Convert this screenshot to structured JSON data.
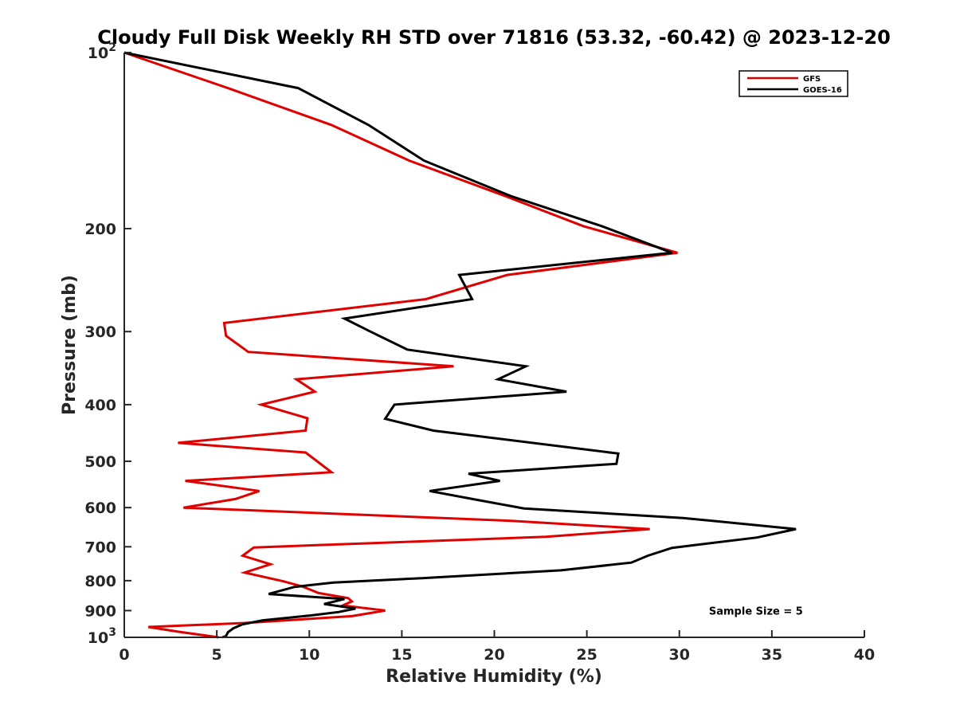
{
  "chart_data": {
    "type": "line",
    "title": "Cloudy Full Disk Weekly RH STD over 71816 (53.32, -60.42) @ 2023-12-20",
    "xlabel": "Relative Humidity (%)",
    "ylabel": "Pressure (mb)",
    "xlim": [
      0,
      40
    ],
    "ylim": [
      100,
      1000
    ],
    "yscale": "log",
    "y_reversed": true,
    "grid": false,
    "legend_position": "top-right",
    "x_ticks": [
      "0",
      "5",
      "10",
      "15",
      "20",
      "25",
      "30",
      "35",
      "40"
    ],
    "x_tick_values": [
      0,
      5,
      10,
      15,
      20,
      25,
      30,
      35,
      40
    ],
    "y_ticks": [
      {
        "value": 100,
        "base": "10",
        "exp": "2"
      },
      {
        "value": 200,
        "label": "200"
      },
      {
        "value": 300,
        "label": "300"
      },
      {
        "value": 400,
        "label": "400"
      },
      {
        "value": 500,
        "label": "500"
      },
      {
        "value": 600,
        "label": "600"
      },
      {
        "value": 700,
        "label": "700"
      },
      {
        "value": 800,
        "label": "800"
      },
      {
        "value": 900,
        "label": "900"
      },
      {
        "value": 1000,
        "base": "10",
        "exp": "3"
      }
    ],
    "series": [
      {
        "name": "GFS",
        "color": "#e00000",
        "points": [
          [
            0,
            100
          ],
          [
            5.6,
            115
          ],
          [
            11.2,
            133
          ],
          [
            15.4,
            153
          ],
          [
            20.6,
            176
          ],
          [
            24.8,
            198
          ],
          [
            29.9,
            220
          ],
          [
            20.7,
            240
          ],
          [
            16.3,
            264
          ],
          [
            5.4,
            290
          ],
          [
            5.5,
            305
          ],
          [
            6.7,
            325
          ],
          [
            17.8,
            344
          ],
          [
            9.3,
            362
          ],
          [
            10.3,
            380
          ],
          [
            7.4,
            400
          ],
          [
            9.9,
            422
          ],
          [
            9.8,
            443
          ],
          [
            2.9,
            465
          ],
          [
            9.8,
            483
          ],
          [
            11.2,
            522
          ],
          [
            3.3,
            540
          ],
          [
            7.3,
            562
          ],
          [
            6.0,
            580
          ],
          [
            3.2,
            600
          ],
          [
            20.9,
            632
          ],
          [
            28.4,
            653
          ],
          [
            22.8,
            673
          ],
          [
            7.0,
            702
          ],
          [
            6.4,
            725
          ],
          [
            7.9,
            750
          ],
          [
            6.5,
            775
          ],
          [
            8.6,
            802
          ],
          [
            9.6,
            818
          ],
          [
            10.5,
            840
          ],
          [
            12.1,
            857
          ],
          [
            12.3,
            868
          ],
          [
            11.8,
            882
          ],
          [
            14.1,
            900
          ],
          [
            12.3,
            920
          ],
          [
            6.5,
            945
          ],
          [
            1.3,
            960
          ],
          [
            2.9,
            978
          ],
          [
            5.1,
            1000
          ]
        ]
      },
      {
        "name": "GOES-16",
        "color": "#000000",
        "points": [
          [
            0,
            100
          ],
          [
            9.4,
            115
          ],
          [
            13.2,
            133
          ],
          [
            16.2,
            153
          ],
          [
            20.9,
            176
          ],
          [
            25.8,
            198
          ],
          [
            29.6,
            220
          ],
          [
            18.1,
            240
          ],
          [
            18.8,
            264
          ],
          [
            11.9,
            285
          ],
          [
            13.3,
            300
          ],
          [
            15.3,
            322
          ],
          [
            21.7,
            344
          ],
          [
            20.2,
            362
          ],
          [
            23.9,
            380
          ],
          [
            14.6,
            400
          ],
          [
            14.1,
            423
          ],
          [
            16.7,
            443
          ],
          [
            26.7,
            485
          ],
          [
            26.6,
            505
          ],
          [
            18.6,
            525
          ],
          [
            20.3,
            540
          ],
          [
            16.5,
            562
          ],
          [
            19.2,
            583
          ],
          [
            21.6,
            602
          ],
          [
            30.2,
            625
          ],
          [
            36.3,
            653
          ],
          [
            34.2,
            675
          ],
          [
            29.6,
            703
          ],
          [
            28.3,
            725
          ],
          [
            27.4,
            745
          ],
          [
            23.6,
            768
          ],
          [
            16.1,
            792
          ],
          [
            11.3,
            806
          ],
          [
            9.2,
            820
          ],
          [
            7.8,
            843
          ],
          [
            11.9,
            860
          ],
          [
            10.8,
            877
          ],
          [
            12.5,
            893
          ],
          [
            11.6,
            905
          ],
          [
            10.0,
            918
          ],
          [
            7.5,
            935
          ],
          [
            6.4,
            950
          ],
          [
            5.9,
            965
          ],
          [
            5.6,
            980
          ],
          [
            5.5,
            995
          ],
          [
            5.3,
            1000
          ]
        ]
      }
    ],
    "annotations": [
      {
        "text": "Sample Size = 5",
        "x": 35,
        "pressure": 900
      }
    ]
  }
}
